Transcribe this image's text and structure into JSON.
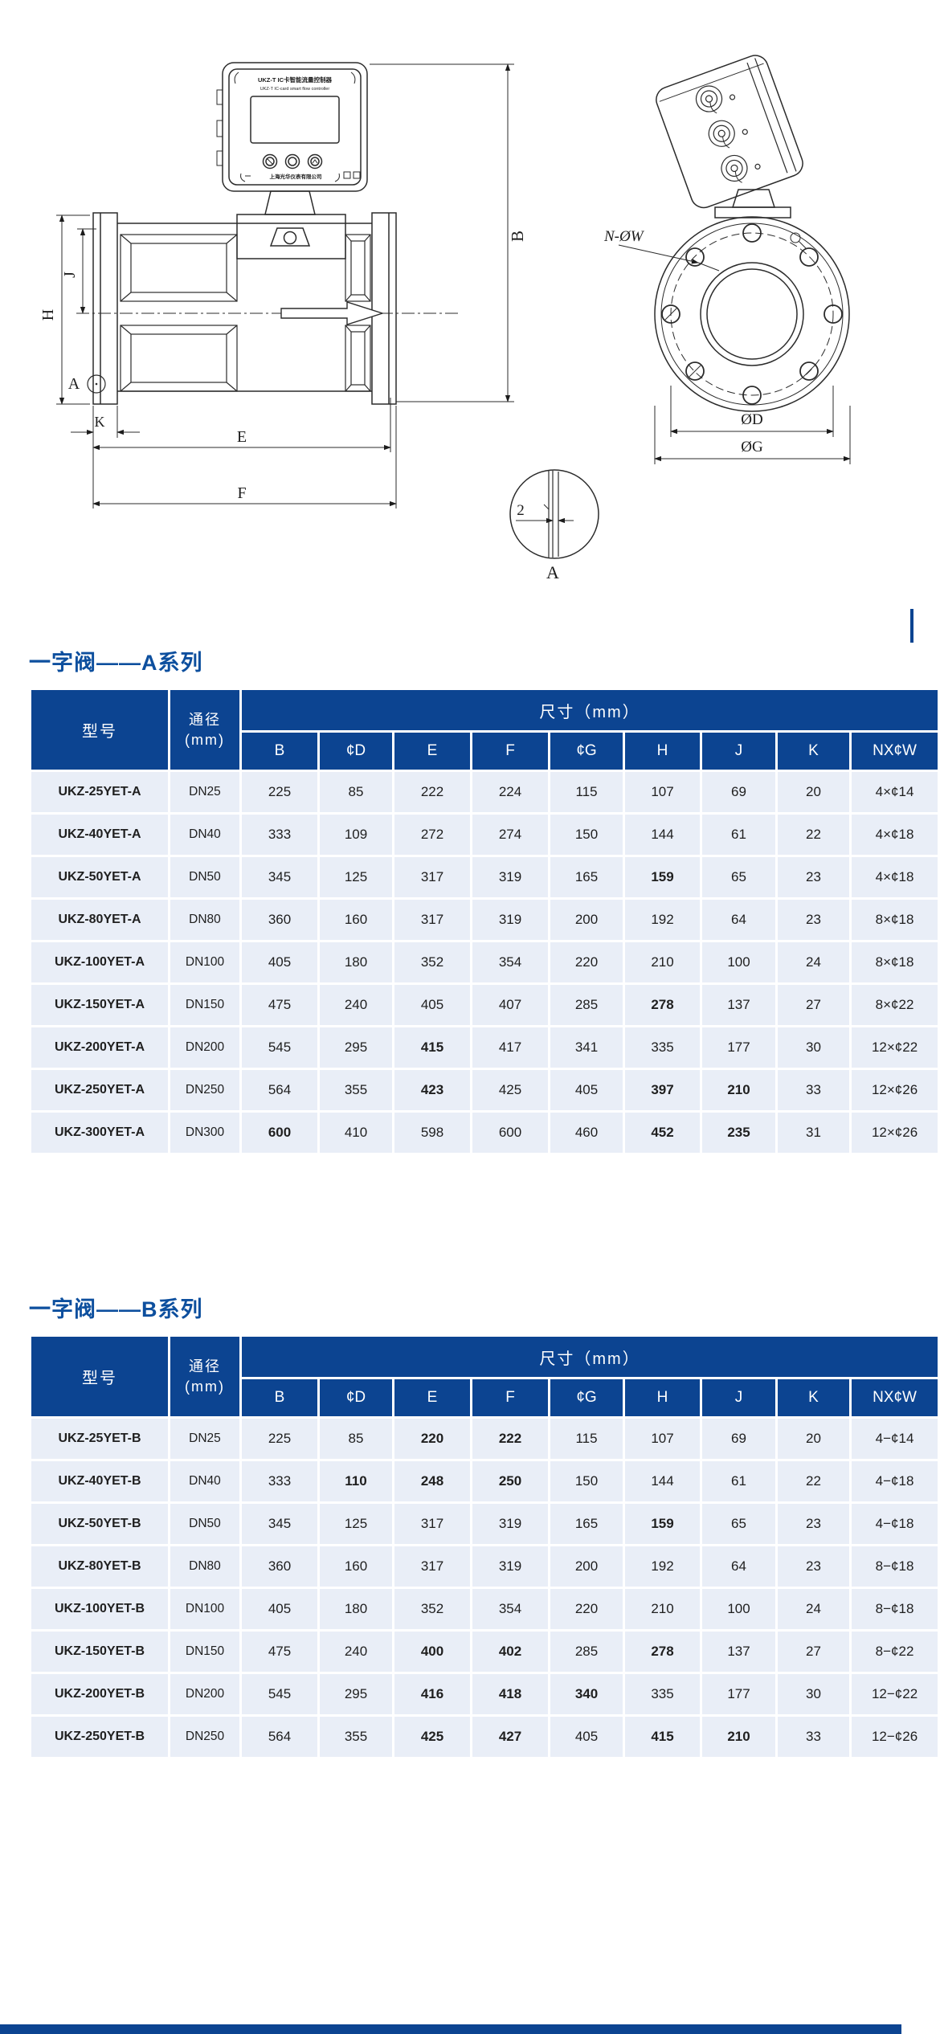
{
  "page": {
    "accent_navy": "#0c4491",
    "title_blue": "#0d4f9e",
    "row_bg": "#e9eef7"
  },
  "drawing": {
    "head_cn": "UKZ-T  IC卡智能流量控制器",
    "head_en": "UKZ-T  IC-card smart flow controller",
    "brand": "上海光华仪表有限公司",
    "labels": {
      "H": "H",
      "J": "J",
      "B": "B",
      "A": "A",
      "K": "K",
      "E": "E",
      "F": "F",
      "NW": "N-ØW",
      "D": "ØD",
      "G": "ØG",
      "detail_dim": "2",
      "detail_label": "A"
    }
  },
  "tables": [
    {
      "title": "一字阀——A系列",
      "col_model": "型号",
      "col_dn": "通径",
      "col_dn_unit": "(mm)",
      "dims_header": "尺寸（mm）",
      "dim_cols": [
        "B",
        "¢D",
        "E",
        "F",
        "¢G",
        "H",
        "J",
        "K",
        "NX¢W"
      ],
      "rows": [
        [
          "UKZ-25YET-A",
          "DN25",
          "225",
          "85",
          "222",
          "224",
          "115",
          "107",
          "69",
          "20",
          "4×¢14"
        ],
        [
          "UKZ-40YET-A",
          "DN40",
          "333",
          "109",
          "272",
          "274",
          "150",
          "144",
          "61",
          "22",
          "4×¢18"
        ],
        [
          "UKZ-50YET-A",
          "DN50",
          "345",
          "125",
          "317",
          "319",
          "165",
          "159",
          "65",
          "23",
          "4×¢18"
        ],
        [
          "UKZ-80YET-A",
          "DN80",
          "360",
          "160",
          "317",
          "319",
          "200",
          "192",
          "64",
          "23",
          "8×¢18"
        ],
        [
          "UKZ-100YET-A",
          "DN100",
          "405",
          "180",
          "352",
          "354",
          "220",
          "210",
          "100",
          "24",
          "8×¢18"
        ],
        [
          "UKZ-150YET-A",
          "DN150",
          "475",
          "240",
          "405",
          "407",
          "285",
          "278",
          "137",
          "27",
          "8×¢22"
        ],
        [
          "UKZ-200YET-A",
          "DN200",
          "545",
          "295",
          "415",
          "417",
          "341",
          "335",
          "177",
          "30",
          "12×¢22"
        ],
        [
          "UKZ-250YET-A",
          "DN250",
          "564",
          "355",
          "423",
          "425",
          "405",
          "397",
          "210",
          "33",
          "12×¢26"
        ],
        [
          "UKZ-300YET-A",
          "DN300",
          "600",
          "410",
          "598",
          "600",
          "460",
          "452",
          "235",
          "31",
          "12×¢26"
        ]
      ],
      "bold_cells": [
        [
          2,
          7
        ],
        [
          5,
          7
        ],
        [
          6,
          4
        ],
        [
          7,
          4
        ],
        [
          7,
          7
        ],
        [
          7,
          8
        ],
        [
          8,
          2
        ],
        [
          8,
          7
        ],
        [
          8,
          8
        ]
      ]
    },
    {
      "title": "一字阀——B系列",
      "col_model": "型号",
      "col_dn": "通径",
      "col_dn_unit": "(mm)",
      "dims_header": "尺寸（mm）",
      "dim_cols": [
        "B",
        "¢D",
        "E",
        "F",
        "¢G",
        "H",
        "J",
        "K",
        "NX¢W"
      ],
      "rows": [
        [
          "UKZ-25YET-B",
          "DN25",
          "225",
          "85",
          "220",
          "222",
          "115",
          "107",
          "69",
          "20",
          "4−¢14"
        ],
        [
          "UKZ-40YET-B",
          "DN40",
          "333",
          "110",
          "248",
          "250",
          "150",
          "144",
          "61",
          "22",
          "4−¢18"
        ],
        [
          "UKZ-50YET-B",
          "DN50",
          "345",
          "125",
          "317",
          "319",
          "165",
          "159",
          "65",
          "23",
          "4−¢18"
        ],
        [
          "UKZ-80YET-B",
          "DN80",
          "360",
          "160",
          "317",
          "319",
          "200",
          "192",
          "64",
          "23",
          "8−¢18"
        ],
        [
          "UKZ-100YET-B",
          "DN100",
          "405",
          "180",
          "352",
          "354",
          "220",
          "210",
          "100",
          "24",
          "8−¢18"
        ],
        [
          "UKZ-150YET-B",
          "DN150",
          "475",
          "240",
          "400",
          "402",
          "285",
          "278",
          "137",
          "27",
          "8−¢22"
        ],
        [
          "UKZ-200YET-B",
          "DN200",
          "545",
          "295",
          "416",
          "418",
          "340",
          "335",
          "177",
          "30",
          "12−¢22"
        ],
        [
          "UKZ-250YET-B",
          "DN250",
          "564",
          "355",
          "425",
          "427",
          "405",
          "415",
          "210",
          "33",
          "12−¢26"
        ]
      ],
      "bold_cells": [
        [
          0,
          4
        ],
        [
          0,
          5
        ],
        [
          1,
          3
        ],
        [
          1,
          4
        ],
        [
          1,
          5
        ],
        [
          2,
          7
        ],
        [
          5,
          4
        ],
        [
          5,
          5
        ],
        [
          5,
          7
        ],
        [
          6,
          4
        ],
        [
          6,
          5
        ],
        [
          6,
          6
        ],
        [
          7,
          4
        ],
        [
          7,
          5
        ],
        [
          7,
          7
        ],
        [
          7,
          8
        ]
      ]
    }
  ]
}
